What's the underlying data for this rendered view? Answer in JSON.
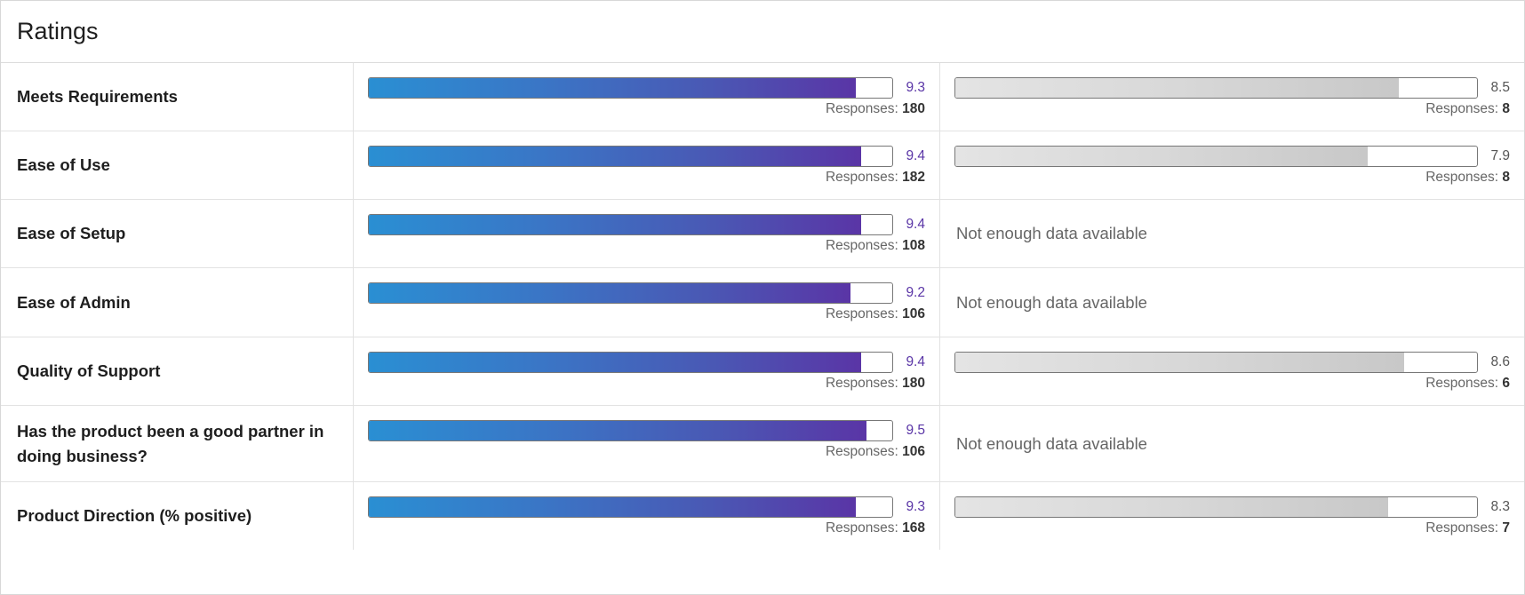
{
  "title": "Ratings",
  "responses_label": "Responses: ",
  "rows": [
    {
      "label": "Meets Requirements",
      "a": {
        "score": "9.3",
        "value": 9.3,
        "responses": "180"
      },
      "b": {
        "score": "8.5",
        "value": 8.5,
        "responses": "8",
        "available": true
      }
    },
    {
      "label": "Ease of Use",
      "a": {
        "score": "9.4",
        "value": 9.4,
        "responses": "182"
      },
      "b": {
        "score": "7.9",
        "value": 7.9,
        "responses": "8",
        "available": true
      }
    },
    {
      "label": "Ease of Setup",
      "a": {
        "score": "9.4",
        "value": 9.4,
        "responses": "108"
      },
      "b": {
        "available": false,
        "message": "Not enough data available"
      }
    },
    {
      "label": "Ease of Admin",
      "a": {
        "score": "9.2",
        "value": 9.2,
        "responses": "106"
      },
      "b": {
        "available": false,
        "message": "Not enough data available"
      }
    },
    {
      "label": "Quality of Support",
      "a": {
        "score": "9.4",
        "value": 9.4,
        "responses": "180"
      },
      "b": {
        "score": "8.6",
        "value": 8.6,
        "responses": "6",
        "available": true
      }
    },
    {
      "label": "Has the product been a good partner in doing business?",
      "a": {
        "score": "9.5",
        "value": 9.5,
        "responses": "106"
      },
      "b": {
        "available": false,
        "message": "Not enough data available"
      }
    },
    {
      "label": "Product Direction (% positive)",
      "a": {
        "score": "9.3",
        "value": 9.3,
        "responses": "168"
      },
      "b": {
        "score": "8.3",
        "value": 8.3,
        "responses": "7",
        "available": true
      }
    }
  ],
  "scale_max": 10,
  "colors": {
    "primary_start": "#2a8fd3",
    "primary_end": "#5a35a6",
    "muted": "#d0d0d0"
  }
}
